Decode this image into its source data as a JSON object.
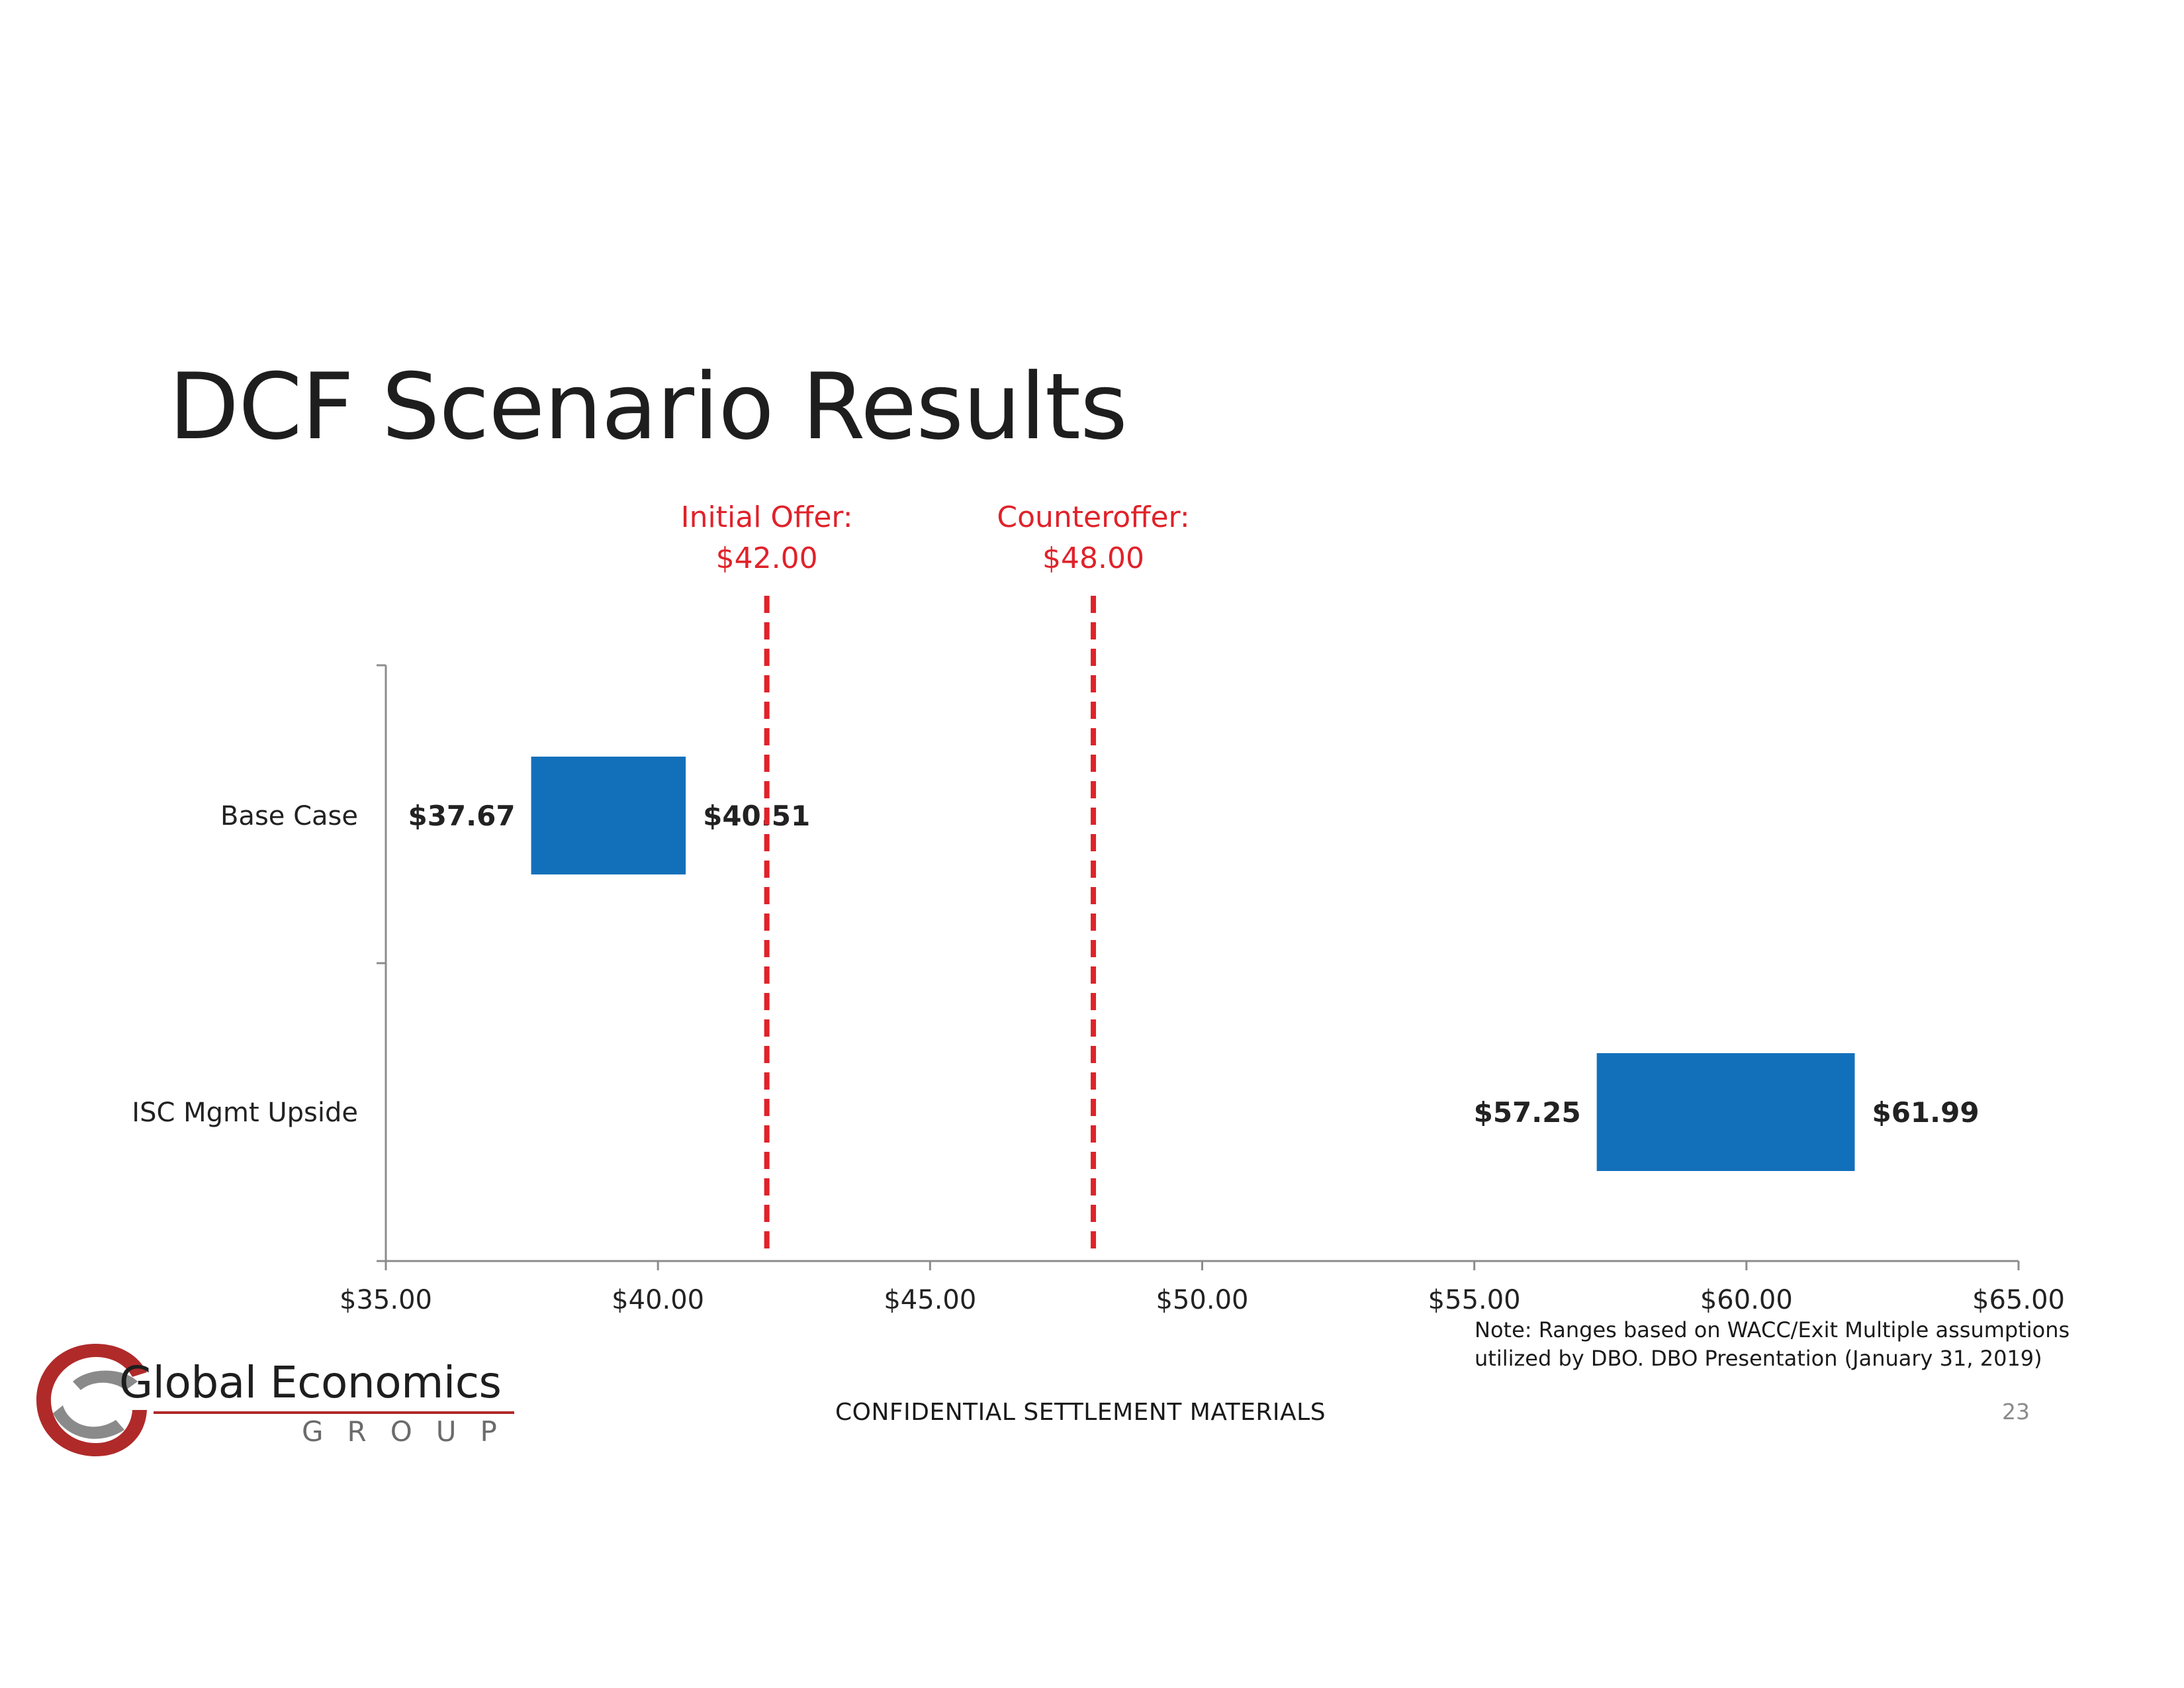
{
  "page": {
    "title": "DCF Scenario Results",
    "footer": "CONFIDENTIAL SETTLEMENT MATERIALS",
    "page_number": "23",
    "note_lines": [
      "Note: Ranges based on WACC/Exit Multiple assumptions",
      "utilized by DBO.  DBO Presentation (January 31, 2019)"
    ]
  },
  "logo": {
    "name": "Global Economics",
    "tagline": "GROUP",
    "colors": {
      "red": "#b02a2a",
      "gray": "#8a8a8a"
    }
  },
  "chart_data": {
    "type": "bar",
    "orientation": "horizontal-range",
    "categories": [
      "Base Case",
      "ISC Mgmt Upside"
    ],
    "ranges": [
      {
        "category": "Base Case",
        "low": 37.67,
        "high": 40.51,
        "low_label": "$37.67",
        "high_label": "$40.51"
      },
      {
        "category": "ISC Mgmt Upside",
        "low": 57.25,
        "high": 61.99,
        "low_label": "$57.25",
        "high_label": "$61.99"
      }
    ],
    "xlim": [
      35,
      65
    ],
    "x_ticks": [
      35,
      40,
      45,
      50,
      55,
      60,
      65
    ],
    "x_tick_labels": [
      "$35.00",
      "$40.00",
      "$45.00",
      "$50.00",
      "$55.00",
      "$60.00",
      "$65.00"
    ],
    "reference_lines": [
      {
        "value": 42.0,
        "label_line1": "Initial Offer:",
        "label_line2": "$42.00"
      },
      {
        "value": 48.0,
        "label_line1": "Counteroffer:",
        "label_line2": "$48.00"
      }
    ],
    "title": "",
    "xlabel": "",
    "ylabel": "",
    "grid": false,
    "colors": {
      "bar": "#1270bb",
      "reference": "#e0222a",
      "axis": "#8c8c8c",
      "text": "#222222"
    }
  }
}
